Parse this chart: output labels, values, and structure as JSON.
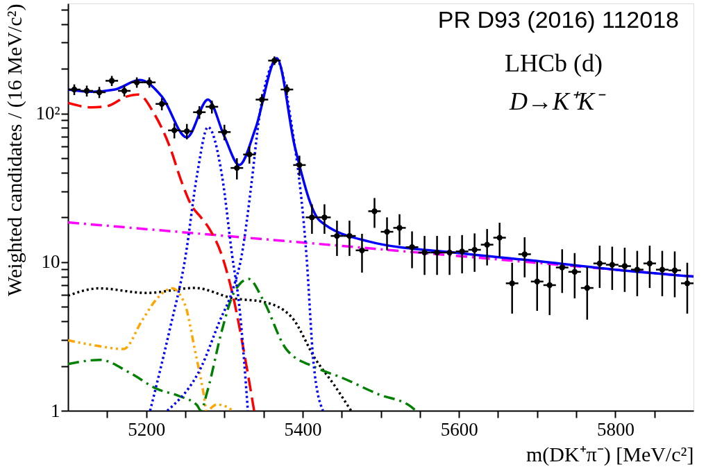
{
  "chart_data": {
    "type": "scatter",
    "xlabel": "m(DK⁺π⁻) [MeV/c²]",
    "ylabel": "Weighted candidates / (16 MeV/c²)",
    "annotations": [
      "PR D93 (2016) 112018",
      "LHCb (d)",
      "D→K⁺K⁻"
    ],
    "xlim": [
      5100,
      5900
    ],
    "ylim": [
      1,
      550
    ],
    "log": "y",
    "grid": false,
    "xticks": [
      {
        "value": 5150,
        "label": null
      },
      5200,
      {
        "value": 5250,
        "label": null
      },
      {
        "value": 5300,
        "label": null
      },
      {
        "value": 5350,
        "label": null
      },
      5400,
      {
        "value": 5450,
        "label": null
      },
      {
        "value": 5500,
        "label": null
      },
      {
        "value": 5550,
        "label": null
      },
      5600,
      {
        "value": 5650,
        "label": null
      },
      {
        "value": 5700,
        "label": null
      },
      {
        "value": 5750,
        "label": null
      },
      5800,
      {
        "value": 5850,
        "label": null
      }
    ],
    "yticks": [
      1,
      {
        "value": 2,
        "label": null
      },
      {
        "value": 3,
        "label": null
      },
      {
        "value": 4,
        "label": null
      },
      {
        "value": 5,
        "label": null
      },
      {
        "value": 6,
        "label": null
      },
      {
        "value": 7,
        "label": null
      },
      {
        "value": 8,
        "label": null
      },
      {
        "value": 9,
        "label": null
      },
      10,
      {
        "value": 20,
        "label": null
      },
      {
        "value": 30,
        "label": null
      },
      {
        "value": 40,
        "label": null
      },
      {
        "value": 50,
        "label": null
      },
      {
        "value": 60,
        "label": null
      },
      {
        "value": 70,
        "label": null
      },
      {
        "value": 80,
        "label": null
      },
      {
        "value": 90,
        "label": null
      },
      {
        "value": 100,
        "label": "10²"
      },
      {
        "value": 200,
        "label": null
      },
      {
        "value": 300,
        "label": null
      },
      {
        "value": 400,
        "label": null
      },
      {
        "value": 500,
        "label": null
      }
    ],
    "series": [
      {
        "color": "#000000",
        "marker": "circle",
        "x": [
          5108,
          5124,
          5140,
          5156,
          5172,
          5188,
          5204,
          5220,
          5236,
          5252,
          5268,
          5284,
          5300,
          5316,
          5332,
          5348,
          5364,
          5380,
          5396,
          5412,
          5428,
          5444,
          5460,
          5476,
          5492,
          5508,
          5524,
          5540,
          5556,
          5572,
          5588,
          5604,
          5620,
          5636,
          5652,
          5668,
          5684,
          5700,
          5716,
          5732,
          5748,
          5764,
          5780,
          5796,
          5812,
          5828,
          5844,
          5860,
          5876,
          5892
        ],
        "values": [
          145,
          142,
          139,
          166,
          142,
          162,
          162,
          116,
          77,
          76,
          102,
          111,
          75,
          43,
          53,
          124,
          227,
          145,
          45,
          20,
          20,
          15,
          15,
          12,
          22,
          16,
          17,
          12.6,
          11.6,
          11.6,
          11.6,
          11.8,
          12.1,
          13.1,
          14.6,
          7.2,
          11.3,
          7.4,
          7.0,
          9.2,
          8.6,
          6.7,
          9.8,
          9.6,
          9.4,
          8.9,
          9.8,
          8.9,
          8.8,
          7.2
        ],
        "errors": [
          12,
          12,
          12,
          13,
          12,
          13,
          13,
          11,
          9,
          9,
          10,
          11,
          9,
          7,
          7,
          11,
          15,
          12,
          7,
          4.5,
          4.5,
          4,
          4,
          3.5,
          5,
          4,
          4,
          3.5,
          3.4,
          3.4,
          3.4,
          3.4,
          3.5,
          3.6,
          3.8,
          2.7,
          3.4,
          2.7,
          2.6,
          3,
          2.9,
          2.6,
          3.1,
          3.1,
          3.1,
          3,
          3.1,
          3,
          3,
          2.7
        ],
        "xerrors": [
          8,
          8,
          8,
          8,
          8,
          8,
          8,
          8,
          8,
          8,
          8,
          8,
          8,
          8,
          8,
          8,
          8,
          8,
          8,
          8,
          8,
          8,
          8,
          8,
          8,
          8,
          8,
          8,
          8,
          8,
          8,
          8,
          8,
          8,
          8,
          8,
          8,
          8,
          8,
          8,
          8,
          8,
          8,
          8,
          8,
          8,
          8,
          8,
          8,
          8
        ]
      },
      {
        "type": "line",
        "color": "#ff00ff",
        "line_style": "dashdot",
        "x": [
          5100,
          5500,
          5900
        ],
        "values": [
          18.5,
          12.2,
          8.0
        ]
      },
      {
        "type": "line",
        "color": "#000000",
        "line_style": "dotted",
        "x": [
          5100,
          5140,
          5200,
          5262,
          5312,
          5350,
          5386,
          5417,
          5440,
          5462
        ],
        "values": [
          5.95,
          6.66,
          6.2,
          6.7,
          5.7,
          5.4,
          4.26,
          2.2,
          1.5,
          1.0
        ]
      },
      {
        "type": "line",
        "color": "#ffa500",
        "line_style": "dashdotdotdot",
        "x": [
          5100,
          5138,
          5171,
          5195,
          5214,
          5233,
          5250,
          5262,
          5274,
          5277,
          5290,
          5305,
          5310
        ],
        "values": [
          2.98,
          2.73,
          2.6,
          4.07,
          5.7,
          6.66,
          5.1,
          2.6,
          1.25,
          1.0,
          1.1,
          1.05,
          1.0
        ]
      },
      {
        "type": "line",
        "color": "#008000",
        "line_style": "dashdot",
        "x": [
          5100,
          5141,
          5179,
          5214,
          5243,
          5265,
          5270,
          5278,
          5297,
          5312,
          5331,
          5350,
          5379,
          5417,
          5450,
          5497,
          5538,
          5545
        ],
        "values": [
          2.06,
          2.2,
          1.8,
          1.4,
          1.25,
          1.09,
          1.0,
          1.34,
          3.5,
          6.2,
          7.7,
          5.5,
          2.6,
          1.95,
          1.67,
          1.29,
          1.07,
          1.0
        ]
      },
      {
        "type": "line",
        "color": "#ff0000",
        "line_style": "dashed",
        "x": [
          5100,
          5130,
          5150,
          5175,
          5190,
          5210,
          5230,
          5245,
          5258,
          5270,
          5280,
          5297,
          5312,
          5325,
          5338
        ],
        "values": [
          118,
          110,
          112,
          130,
          134,
          100,
          60,
          35,
          24,
          20,
          17,
          11,
          5.6,
          2.5,
          1.0
        ]
      },
      {
        "type": "line",
        "color": "#0000ff",
        "line_style": "dotted",
        "x": [
          5205,
          5230,
          5250,
          5265,
          5279,
          5297,
          5310,
          5319,
          5330
        ],
        "values": [
          1.0,
          3.5,
          10.7,
          38.5,
          81,
          38,
          11,
          5.1,
          1.0
        ]
      },
      {
        "type": "line",
        "color": "#0000ff",
        "line_style": "dotted",
        "x": [
          5227,
          5271,
          5293,
          5311,
          5322,
          5335,
          5345,
          5367,
          5385,
          5405,
          5414,
          5426
        ],
        "values": [
          1.0,
          2.0,
          3.9,
          6.6,
          11,
          35,
          98,
          228,
          90,
          11,
          2.1,
          1.0
        ]
      },
      {
        "type": "line",
        "color": "#0000ff",
        "line_style": "solid",
        "x": [
          5100,
          5130,
          5160,
          5192,
          5220,
          5252,
          5279,
          5300,
          5319,
          5340,
          5367,
          5390,
          5422,
          5484,
          5600,
          5690,
          5800,
          5900
        ],
        "values": [
          145,
          140,
          145,
          168,
          130,
          69,
          124,
          70,
          45,
          80,
          235,
          60,
          19,
          13.8,
          11.5,
          10.3,
          8.9,
          8.0
        ]
      }
    ]
  }
}
